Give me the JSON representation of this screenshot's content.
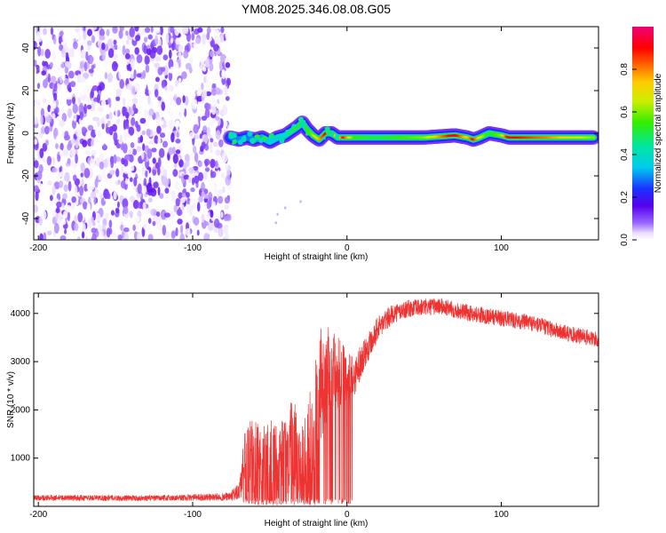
{
  "title": "YM08.2025.346.08.08.G05",
  "chart_data": [
    {
      "type": "heatmap",
      "name": "spectrogram",
      "xlabel": "Height of straight line (km)",
      "ylabel": "Frequency (Hz)",
      "xlim": [
        -203,
        163
      ],
      "ylim": [
        -50,
        50
      ],
      "xticks": [
        -200,
        -100,
        0,
        100
      ],
      "yticks": [
        -40,
        -20,
        0,
        20,
        40
      ],
      "xtick_labels": [
        "-200",
        "-100",
        "0",
        "100"
      ],
      "ytick_labels": [
        "-40",
        "-20",
        "0",
        "20",
        "40"
      ],
      "noise_region": {
        "x_from": -203,
        "x_to": -76,
        "amplitude_range": [
          0.0,
          0.15
        ]
      },
      "signal_track": {
        "x": [
          -76,
          -70,
          -65,
          -60,
          -55,
          -50,
          -45,
          -40,
          -36,
          -32,
          -29,
          -26,
          -22,
          -18,
          -14,
          -10,
          -6,
          -2,
          5,
          20,
          50,
          70,
          78,
          82,
          86,
          92,
          100,
          105,
          110,
          130,
          160
        ],
        "freq": [
          -2,
          -3,
          -2,
          -3,
          -2,
          -4,
          -2,
          -1,
          1,
          3,
          5,
          2,
          -1,
          -3,
          0,
          0,
          -2,
          -2,
          -2,
          -2,
          -2,
          -1,
          -2,
          -3,
          -2,
          0,
          -1,
          -2,
          -2,
          -2,
          -2
        ],
        "peak_amplitude": [
          0.25,
          0.3,
          0.28,
          0.3,
          0.32,
          0.35,
          0.38,
          0.4,
          0.45,
          0.5,
          0.55,
          0.5,
          0.6,
          0.75,
          0.9,
          0.95,
          0.6,
          0.9,
          0.55,
          0.5,
          0.6,
          0.95,
          0.7,
          0.9,
          0.7,
          0.5,
          0.6,
          0.95,
          0.9,
          0.8,
          0.6
        ]
      },
      "colorbar": {
        "label": "Normalized spectral amplitude",
        "range": [
          0.0,
          1.0
        ],
        "ticks": [
          0.0,
          0.2,
          0.4,
          0.6,
          0.8
        ],
        "tick_labels": [
          "0.0",
          "0.2",
          "0.4",
          "0.6",
          "0.8"
        ]
      }
    },
    {
      "type": "line",
      "name": "snr",
      "xlabel": "Height of straight line (km)",
      "ylabel": "SNR (10 * v/v)",
      "color": "#ee3333",
      "xlim": [
        -203,
        163
      ],
      "ylim": [
        0,
        4420
      ],
      "xticks": [
        -200,
        -100,
        0,
        100
      ],
      "yticks": [
        1000,
        2000,
        3000,
        4000
      ],
      "xtick_labels": [
        "-200",
        "-100",
        "0",
        "100"
      ],
      "ytick_labels": [
        "1000",
        "2000",
        "3000",
        "4000"
      ],
      "envelope": {
        "x": [
          -203,
          -120,
          -76,
          -70,
          -66,
          -62,
          -55,
          -50,
          -45,
          -40,
          -35,
          -30,
          -25,
          -22,
          -18,
          -14,
          -10,
          -5,
          0,
          5,
          10,
          15,
          20,
          30,
          40,
          60,
          80,
          100,
          120,
          140,
          163
        ],
        "mean": [
          180,
          170,
          200,
          300,
          900,
          1000,
          900,
          1000,
          800,
          1100,
          1300,
          900,
          1200,
          1400,
          2500,
          2600,
          2900,
          2800,
          2500,
          2700,
          3100,
          3400,
          3700,
          4000,
          4100,
          4150,
          4000,
          3900,
          3800,
          3600,
          3450
        ],
        "spread": [
          60,
          60,
          80,
          200,
          700,
          800,
          800,
          900,
          800,
          900,
          1000,
          900,
          1100,
          1200,
          1200,
          1100,
          900,
          800,
          700,
          400,
          350,
          300,
          250,
          200,
          180,
          180,
          170,
          170,
          170,
          170,
          170
        ]
      }
    }
  ]
}
